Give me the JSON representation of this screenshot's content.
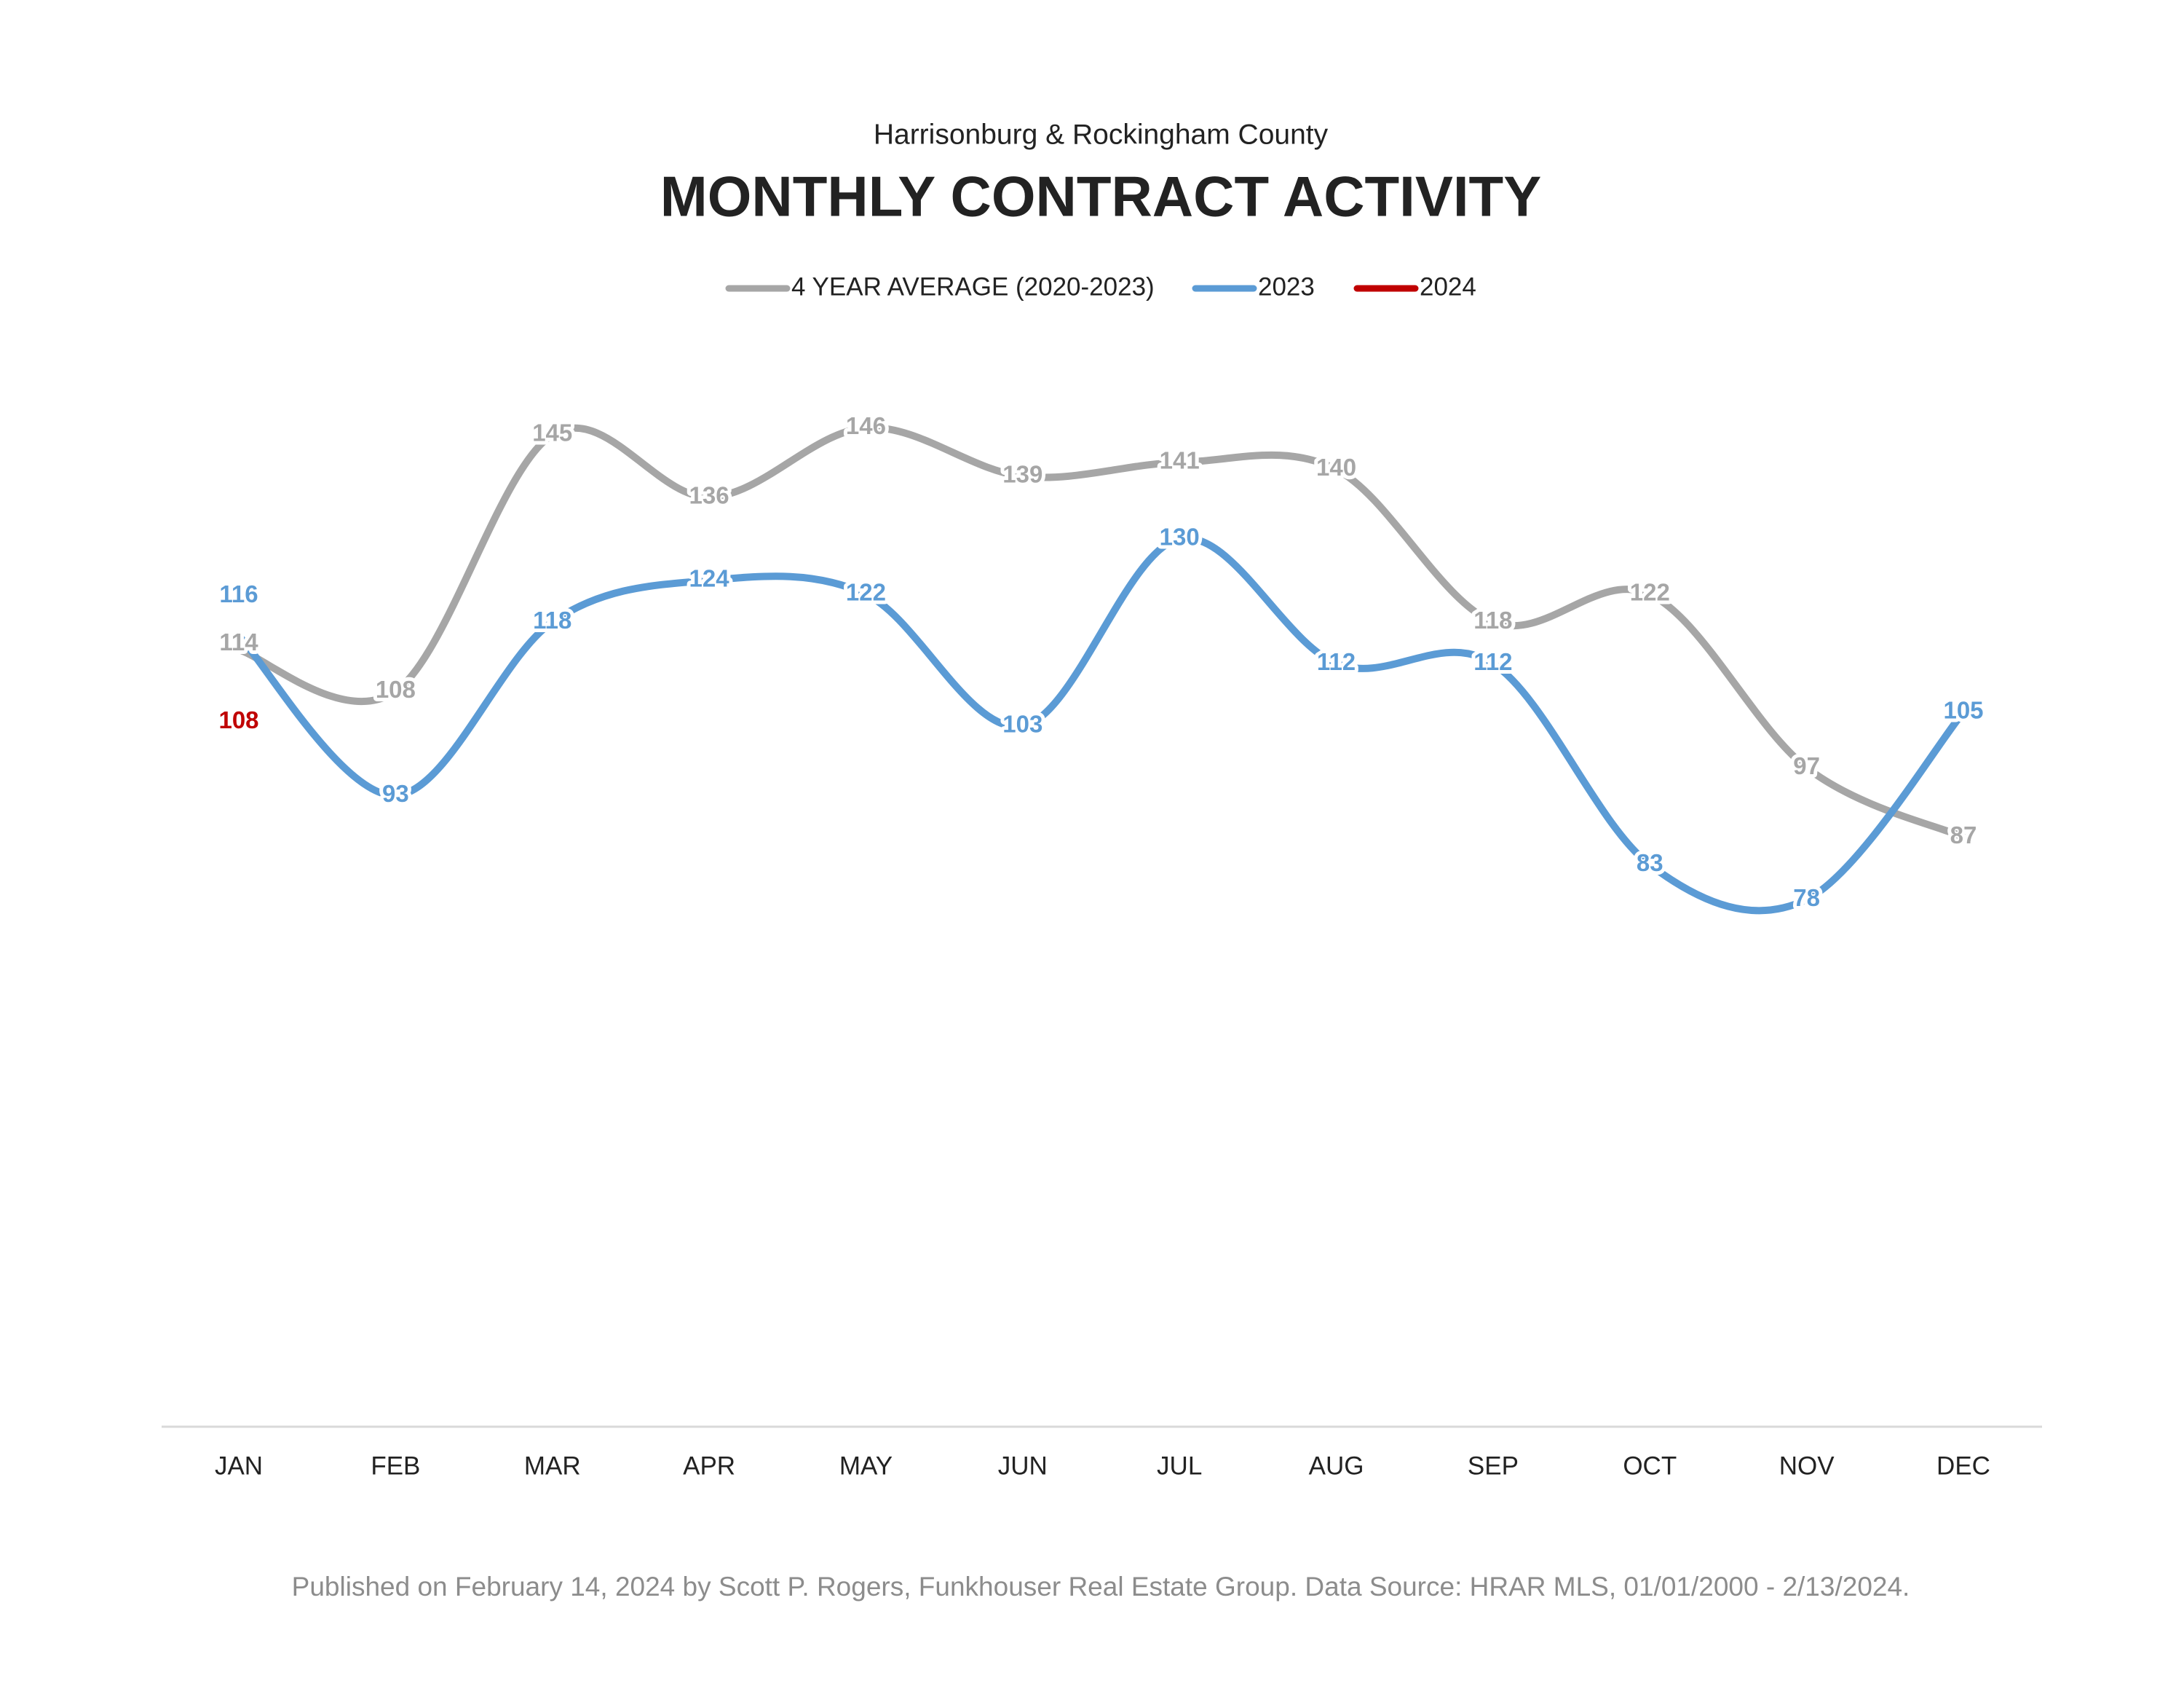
{
  "chart_data": {
    "type": "line",
    "subtitle": "Harrisonburg & Rockingham County",
    "title": "MONTHLY CONTRACT ACTIVITY",
    "footer": "Published on February 14, 2024 by Scott P. Rogers, Funkhouser Real Estate Group. Data Source: HRAR MLS, 01/01/2000 - 2/13/2024.",
    "categories": [
      "JAN",
      "FEB",
      "MAR",
      "APR",
      "MAY",
      "JUN",
      "JUL",
      "AUG",
      "SEP",
      "OCT",
      "NOV",
      "DEC"
    ],
    "series": [
      {
        "name": "4 YEAR AVERAGE (2020-2023)",
        "color": "#a6a6a6",
        "values": [
          114,
          108,
          145,
          136,
          146,
          139,
          141,
          140,
          118,
          122,
          97,
          87
        ]
      },
      {
        "name": "2023",
        "color": "#5b9bd5",
        "values": [
          116,
          93,
          118,
          124,
          122,
          103,
          130,
          112,
          112,
          83,
          78,
          105
        ]
      },
      {
        "name": "2024",
        "color": "#c00000",
        "values": [
          108,
          null,
          null,
          null,
          null,
          null,
          null,
          null,
          null,
          null,
          null,
          null
        ]
      }
    ],
    "ylim": [
      0,
      160
    ],
    "smooth": true,
    "legend": "top"
  }
}
